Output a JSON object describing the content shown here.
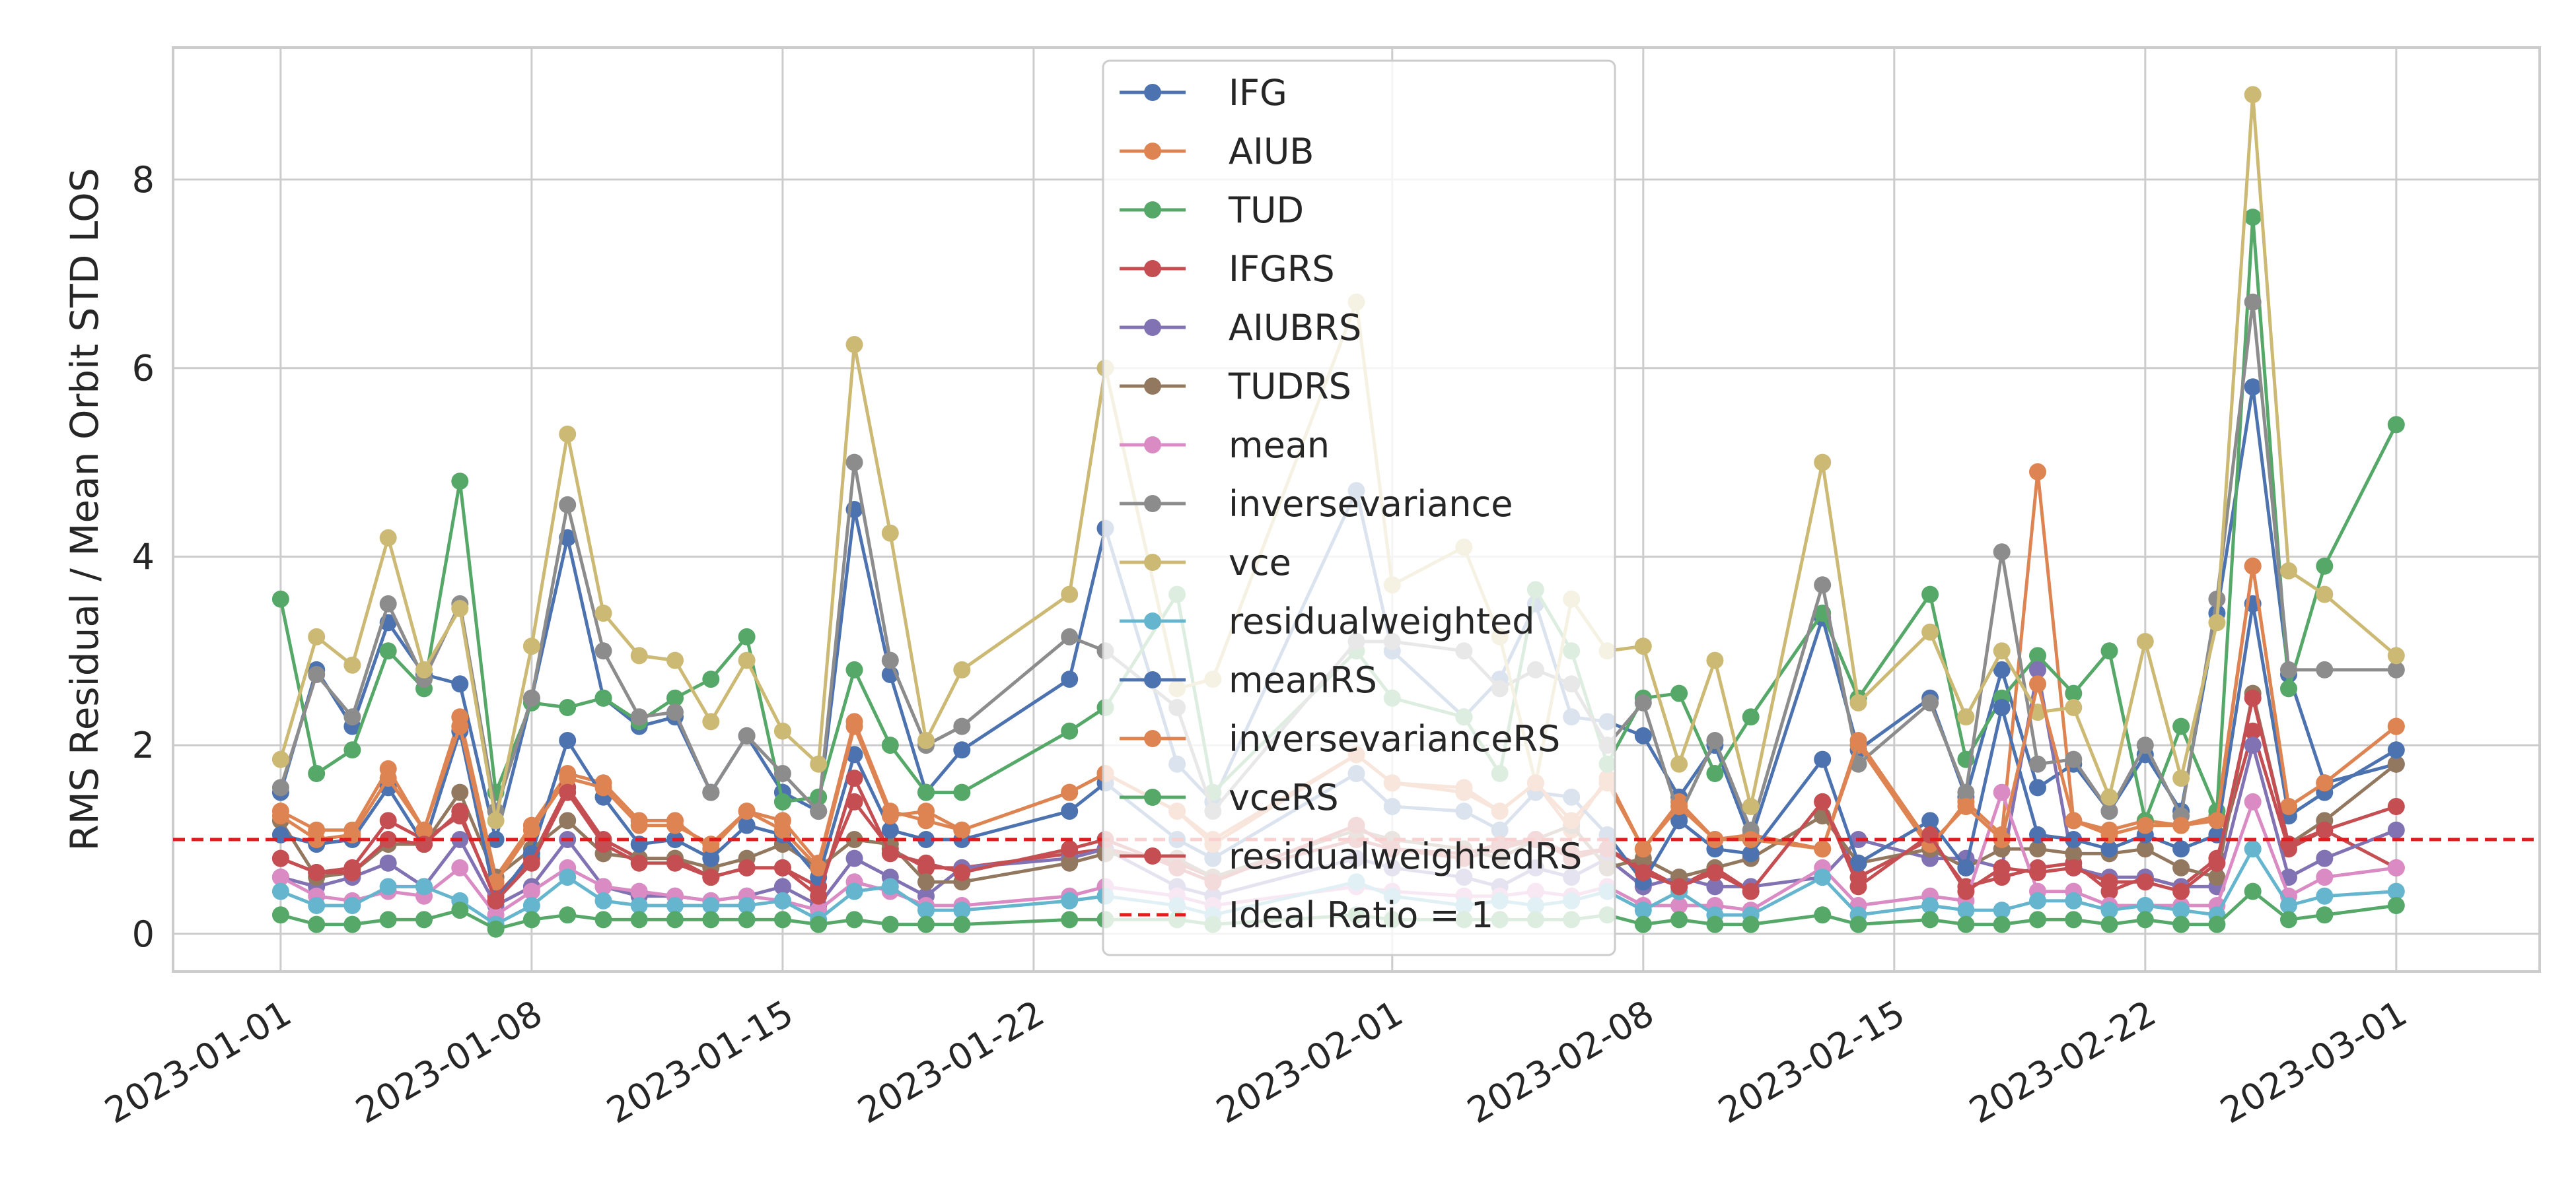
{
  "chart_data": {
    "type": "line",
    "title": "",
    "xlabel": "",
    "ylabel": "RMS Residual / Mean Orbit STD LOS",
    "xlim": [
      "2022-12-29",
      "2023-03-05"
    ],
    "ylim": [
      -0.4,
      9.4
    ],
    "yticks": [
      0,
      2,
      4,
      6,
      8
    ],
    "xticks": [
      "2023-01-01",
      "2023-01-08",
      "2023-01-15",
      "2023-01-22",
      "2023-02-01",
      "2023-02-08",
      "2023-02-15",
      "2023-02-22",
      "2023-03-01"
    ],
    "grid": true,
    "legend_position": "upper-center",
    "x": [
      "2023-01-01",
      "2023-01-02",
      "2023-01-03",
      "2023-01-04",
      "2023-01-05",
      "2023-01-06",
      "2023-01-07",
      "2023-01-08",
      "2023-01-09",
      "2023-01-10",
      "2023-01-11",
      "2023-01-12",
      "2023-01-13",
      "2023-01-14",
      "2023-01-15",
      "2023-01-16",
      "2023-01-17",
      "2023-01-18",
      "2023-01-19",
      "2023-01-20",
      "2023-01-23",
      "2023-01-24",
      "2023-01-26",
      "2023-01-27",
      "2023-01-31",
      "2023-02-01",
      "2023-02-03",
      "2023-02-04",
      "2023-02-05",
      "2023-02-06",
      "2023-02-07",
      "2023-02-08",
      "2023-02-09",
      "2023-02-10",
      "2023-02-11",
      "2023-02-13",
      "2023-02-14",
      "2023-02-16",
      "2023-02-17",
      "2023-02-18",
      "2023-02-19",
      "2023-02-20",
      "2023-02-21",
      "2023-02-22",
      "2023-02-23",
      "2023-02-24",
      "2023-02-25",
      "2023-02-26",
      "2023-02-27",
      "2023-03-01"
    ],
    "series": [
      {
        "name": "IFG",
        "color": "#4c72b0",
        "values": [
          1.5,
          2.8,
          2.2,
          3.3,
          2.75,
          2.65,
          1.0,
          2.5,
          4.2,
          2.5,
          2.2,
          2.3,
          1.5,
          2.1,
          1.5,
          1.3,
          4.5,
          2.75,
          1.5,
          1.95,
          2.7,
          4.3,
          1.8,
          1.4,
          4.7,
          3.0,
          2.3,
          2.7,
          3.5,
          2.3,
          2.25,
          2.1,
          1.45,
          2.0,
          1.0,
          3.35,
          1.95,
          2.5,
          1.45,
          2.8,
          1.55,
          1.8,
          1.3,
          1.9,
          1.3,
          3.4,
          5.8,
          2.75,
          1.6,
          1.8
        ]
      },
      {
        "name": "AIUB",
        "color": "#dd8452",
        "values": [
          1.3,
          1.1,
          1.1,
          1.75,
          1.1,
          2.3,
          0.6,
          1.15,
          1.7,
          1.6,
          1.2,
          1.2,
          0.9,
          1.3,
          1.2,
          0.75,
          2.25,
          1.3,
          1.2,
          1.1,
          1.5,
          1.7,
          1.3,
          1.0,
          1.9,
          1.6,
          1.5,
          1.3,
          1.6,
          1.1,
          1.65,
          0.9,
          1.4,
          1.0,
          1.05,
          0.9,
          2.0,
          0.9,
          1.4,
          1.05,
          4.9,
          1.2,
          1.1,
          1.2,
          1.15,
          1.25,
          3.9,
          1.35,
          1.6,
          2.2
        ]
      },
      {
        "name": "TUD",
        "color": "#55a868",
        "values": [
          3.55,
          1.7,
          1.95,
          3.0,
          2.6,
          4.8,
          1.5,
          2.45,
          2.4,
          2.5,
          2.25,
          2.5,
          2.7,
          3.15,
          1.4,
          1.45,
          2.8,
          2.0,
          1.5,
          1.5,
          2.15,
          2.4,
          3.6,
          1.5,
          3.0,
          2.5,
          2.3,
          1.7,
          3.65,
          3.0,
          1.8,
          2.5,
          2.55,
          1.7,
          2.3,
          3.4,
          2.5,
          3.6,
          1.85,
          2.5,
          2.95,
          2.55,
          3.0,
          1.2,
          2.2,
          1.3,
          7.6,
          2.6,
          3.9,
          5.4
        ]
      },
      {
        "name": "IFGRS",
        "color": "#c44e52",
        "values": [
          0.8,
          0.65,
          0.7,
          1.2,
          1.0,
          1.25,
          0.4,
          0.8,
          1.55,
          1.0,
          0.8,
          0.8,
          0.6,
          0.7,
          0.7,
          0.5,
          1.4,
          0.9,
          0.7,
          0.7,
          0.85,
          0.9,
          0.75,
          0.6,
          1.0,
          0.9,
          0.8,
          0.9,
          1.0,
          0.8,
          0.9,
          0.7,
          0.5,
          0.7,
          0.45,
          1.4,
          0.6,
          1.0,
          0.5,
          0.6,
          0.7,
          0.75,
          0.45,
          0.6,
          0.5,
          0.8,
          2.15,
          0.9,
          1.1,
          0.7
        ]
      },
      {
        "name": "AIUBRS",
        "color": "#8172b3",
        "values": [
          0.6,
          0.5,
          0.6,
          0.75,
          0.5,
          1.0,
          0.3,
          0.5,
          1.0,
          0.5,
          0.4,
          0.4,
          0.35,
          0.4,
          0.5,
          0.3,
          0.8,
          0.6,
          0.4,
          0.7,
          0.8,
          0.9,
          0.5,
          0.4,
          0.8,
          0.7,
          0.6,
          0.5,
          0.7,
          0.6,
          0.8,
          0.5,
          0.6,
          0.5,
          0.5,
          0.6,
          1.0,
          0.8,
          0.8,
          0.7,
          2.8,
          0.7,
          0.6,
          0.6,
          0.5,
          0.5,
          2.0,
          0.6,
          0.8,
          1.1
        ]
      },
      {
        "name": "TUDRS",
        "color": "#937860",
        "values": [
          1.2,
          0.6,
          0.65,
          0.95,
          0.95,
          1.5,
          0.6,
          0.9,
          1.2,
          0.85,
          0.8,
          0.8,
          0.7,
          0.8,
          0.95,
          0.7,
          1.0,
          0.95,
          0.55,
          0.55,
          0.75,
          0.85,
          0.8,
          0.6,
          1.1,
          1.0,
          0.9,
          0.8,
          1.0,
          1.15,
          0.7,
          0.8,
          0.6,
          0.7,
          0.8,
          1.25,
          0.75,
          0.9,
          0.7,
          0.9,
          0.9,
          0.85,
          0.85,
          0.9,
          0.7,
          0.6,
          2.55,
          0.95,
          1.2,
          1.8
        ]
      },
      {
        "name": "mean",
        "color": "#da8bc3",
        "values": [
          0.6,
          0.4,
          0.35,
          0.45,
          0.4,
          0.7,
          0.2,
          0.45,
          0.7,
          0.5,
          0.45,
          0.4,
          0.35,
          0.4,
          0.35,
          0.25,
          0.55,
          0.45,
          0.3,
          0.3,
          0.4,
          0.5,
          0.4,
          0.3,
          0.5,
          0.45,
          0.4,
          0.4,
          0.45,
          0.4,
          0.5,
          0.3,
          0.3,
          0.3,
          0.25,
          0.7,
          0.3,
          0.4,
          0.35,
          1.5,
          0.45,
          0.45,
          0.3,
          0.3,
          0.3,
          0.3,
          1.4,
          0.4,
          0.6,
          0.7
        ]
      },
      {
        "name": "inversevariance",
        "color": "#8c8c8c",
        "values": [
          1.55,
          2.75,
          2.3,
          3.5,
          2.7,
          3.5,
          1.3,
          2.5,
          4.55,
          3.0,
          2.3,
          2.35,
          1.5,
          2.1,
          1.7,
          1.3,
          5.0,
          2.9,
          2.0,
          2.2,
          3.15,
          3.0,
          2.4,
          1.3,
          3.1,
          3.1,
          3.0,
          2.6,
          2.8,
          2.65,
          2.0,
          2.45,
          1.25,
          2.05,
          1.1,
          3.7,
          1.8,
          2.45,
          1.5,
          4.05,
          1.8,
          1.85,
          1.3,
          2.0,
          1.25,
          3.55,
          6.7,
          2.8,
          2.8,
          2.8
        ]
      },
      {
        "name": "vce",
        "color": "#ccb974",
        "values": [
          1.85,
          3.15,
          2.85,
          4.2,
          2.8,
          3.45,
          1.2,
          3.05,
          5.3,
          3.4,
          2.95,
          2.9,
          2.25,
          2.9,
          2.15,
          1.8,
          6.25,
          4.25,
          2.05,
          2.8,
          3.6,
          6.0,
          2.6,
          2.7,
          6.7,
          3.7,
          4.1,
          3.15,
          1.6,
          3.55,
          3.0,
          3.05,
          1.8,
          2.9,
          1.35,
          5.0,
          2.45,
          3.2,
          2.3,
          3.0,
          2.35,
          2.4,
          1.45,
          3.1,
          1.65,
          3.3,
          8.9,
          3.85,
          3.6,
          2.95
        ]
      },
      {
        "name": "residualweighted",
        "color": "#64b5cd",
        "values": [
          0.45,
          0.3,
          0.3,
          0.5,
          0.5,
          0.35,
          0.1,
          0.3,
          0.6,
          0.35,
          0.3,
          0.3,
          0.3,
          0.3,
          0.35,
          0.15,
          0.45,
          0.5,
          0.25,
          0.25,
          0.35,
          0.4,
          0.3,
          0.2,
          0.55,
          0.4,
          0.3,
          0.35,
          0.3,
          0.35,
          0.45,
          0.25,
          0.45,
          0.2,
          0.2,
          0.6,
          0.2,
          0.3,
          0.25,
          0.25,
          0.35,
          0.35,
          0.25,
          0.3,
          0.25,
          0.2,
          0.9,
          0.3,
          0.4,
          0.45
        ]
      },
      {
        "name": "meanRS",
        "color": "#4c72b0",
        "values": [
          1.05,
          0.95,
          1.0,
          1.55,
          0.95,
          2.15,
          0.35,
          0.85,
          2.05,
          1.45,
          0.95,
          1.0,
          0.8,
          1.15,
          1.05,
          0.6,
          1.9,
          1.1,
          1.0,
          1.0,
          1.3,
          1.6,
          1.0,
          0.8,
          1.7,
          1.35,
          1.3,
          1.1,
          1.5,
          1.45,
          1.05,
          0.55,
          1.2,
          0.9,
          0.85,
          1.85,
          0.75,
          1.2,
          0.7,
          2.4,
          1.05,
          1.0,
          0.9,
          1.05,
          0.9,
          1.05,
          3.5,
          1.25,
          1.5,
          1.95
        ]
      },
      {
        "name": "inversevarianceRS",
        "color": "#dd8452",
        "values": [
          1.25,
          1.0,
          1.05,
          1.65,
          1.1,
          2.2,
          0.55,
          1.1,
          1.65,
          1.55,
          1.15,
          1.15,
          0.95,
          1.3,
          1.1,
          0.7,
          2.2,
          1.25,
          1.3,
          1.1,
          1.5,
          1.7,
          1.3,
          0.95,
          1.9,
          1.6,
          1.55,
          1.3,
          1.6,
          1.2,
          1.6,
          0.9,
          1.35,
          1.0,
          1.0,
          0.9,
          2.05,
          0.95,
          1.35,
          1.0,
          2.65,
          1.2,
          1.05,
          1.15,
          1.15,
          1.2,
          3.9,
          1.35,
          1.6,
          2.2
        ]
      },
      {
        "name": "vceRS",
        "color": "#55a868",
        "values": [
          0.2,
          0.1,
          0.1,
          0.15,
          0.15,
          0.25,
          0.05,
          0.15,
          0.2,
          0.15,
          0.15,
          0.15,
          0.15,
          0.15,
          0.15,
          0.1,
          0.15,
          0.1,
          0.1,
          0.1,
          0.15,
          0.15,
          0.15,
          0.1,
          0.2,
          0.15,
          0.15,
          0.15,
          0.15,
          0.15,
          0.2,
          0.1,
          0.15,
          0.1,
          0.1,
          0.2,
          0.1,
          0.15,
          0.1,
          0.1,
          0.15,
          0.15,
          0.1,
          0.15,
          0.1,
          0.1,
          0.45,
          0.15,
          0.2,
          0.3
        ]
      },
      {
        "name": "residualweightedRS",
        "color": "#c44e52",
        "values": [
          0.8,
          0.65,
          0.65,
          1.0,
          0.95,
          1.3,
          0.35,
          0.75,
          1.5,
          0.95,
          0.75,
          0.75,
          0.6,
          0.7,
          0.7,
          0.4,
          1.65,
          0.85,
          0.75,
          0.65,
          0.9,
          1.0,
          0.7,
          0.55,
          1.15,
          0.9,
          0.85,
          0.95,
          1.0,
          0.85,
          0.9,
          0.65,
          0.5,
          0.65,
          0.45,
          1.4,
          0.5,
          1.05,
          0.45,
          0.7,
          0.65,
          0.7,
          0.55,
          0.55,
          0.45,
          0.75,
          2.5,
          0.95,
          1.1,
          1.35
        ]
      }
    ],
    "reference_line": {
      "name": "Ideal Ratio = 1",
      "y": 1,
      "color": "#e41a1c",
      "style": "dashed"
    }
  }
}
